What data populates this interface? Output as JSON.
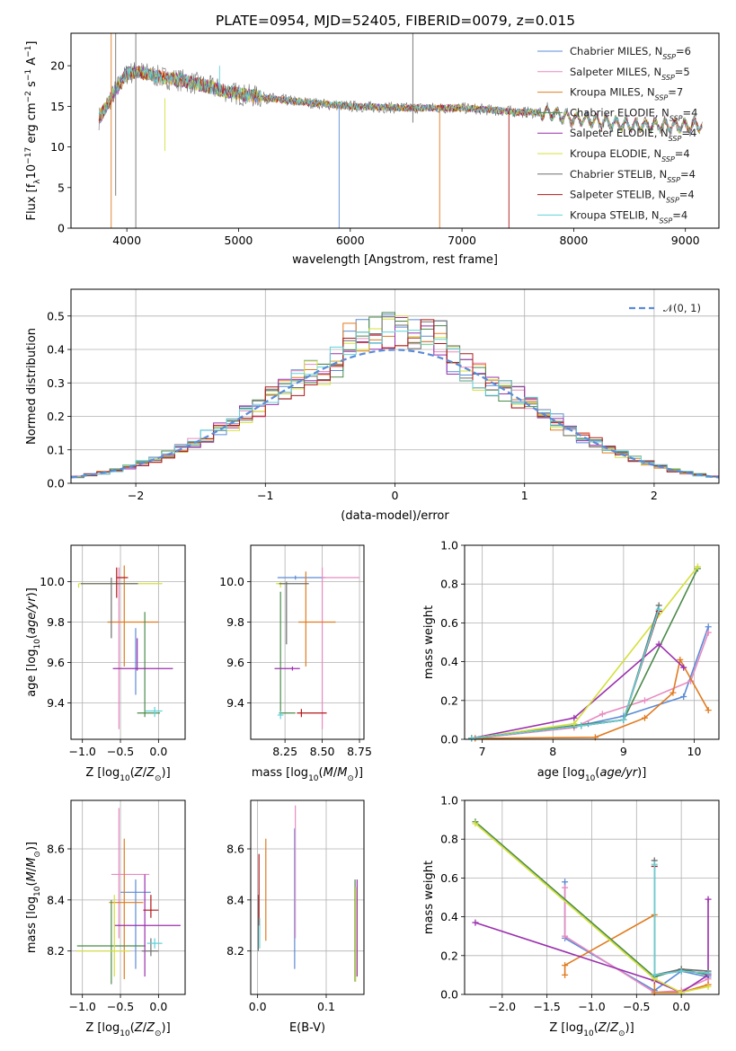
{
  "figure": {
    "title": "PLATE=0954, MJD=52405, FIBERID=0079, z=0.015"
  },
  "colors": {
    "Chabrier MILES": "#5b8bd6",
    "Salpeter MILES": "#e88bc0",
    "Kroupa MILES": "#e07b1f",
    "Chabrier ELODIE": "#4a8a4a",
    "Salpeter ELODIE": "#9b2fae",
    "Kroupa ELODIE": "#d4e03a",
    "Chabrier STELIB": "#6e6e6e",
    "Salpeter STELIB": "#b01818",
    "Kroupa STELIB": "#5fd2d8",
    "normal_curve": "#5b8bd6"
  },
  "legend_spectrum": [
    {
      "name": "Chabrier MILES",
      "label": "Chabrier MILES, N",
      "sub": "SSP",
      "tail": "=6"
    },
    {
      "name": "Salpeter MILES",
      "label": "Salpeter MILES, N",
      "sub": "SSP",
      "tail": "=5"
    },
    {
      "name": "Kroupa MILES",
      "label": "Kroupa MILES, N",
      "sub": "SSP",
      "tail": "=7"
    },
    {
      "name": "Chabrier ELODIE",
      "label": "Chabrier ELODIE, N",
      "sub": "SSP",
      "tail": "=4"
    },
    {
      "name": "Salpeter ELODIE",
      "label": "Salpeter ELODIE, N",
      "sub": "SSP",
      "tail": "=4"
    },
    {
      "name": "Kroupa ELODIE",
      "label": "Kroupa ELODIE, N",
      "sub": "SSP",
      "tail": "=4"
    },
    {
      "name": "Chabrier STELIB",
      "label": "Chabrier STELIB, N",
      "sub": "SSP",
      "tail": "=4"
    },
    {
      "name": "Salpeter STELIB",
      "label": "Salpeter STELIB, N",
      "sub": "SSP",
      "tail": "=4"
    },
    {
      "name": "Kroupa STELIB",
      "label": "Kroupa STELIB, N",
      "sub": "SSP",
      "tail": "=4"
    }
  ],
  "legend_hist": {
    "label": "𝒩(0, 1)"
  },
  "chart_data": [
    {
      "id": "spectrum",
      "type": "line",
      "xlabel": "wavelength [Angstrom, rest frame]",
      "ylabel": "Flux [f",
      "xlim": [
        3500,
        9300
      ],
      "ylim": [
        0,
        24
      ],
      "xticks": [
        4000,
        5000,
        6000,
        7000,
        8000,
        9000
      ],
      "yticks": [
        0,
        5,
        10,
        15,
        20
      ],
      "continuum": {
        "x": [
          3750,
          3900,
          4000,
          4100,
          4300,
          4500,
          4800,
          5000,
          5500,
          6000,
          6500,
          7000,
          7500,
          7800,
          8000,
          8500,
          9000,
          9150
        ],
        "y": [
          13.5,
          17.0,
          19.0,
          19.3,
          18.6,
          18.2,
          17.2,
          16.5,
          15.6,
          15.0,
          14.8,
          14.8,
          14.3,
          14.2,
          13.5,
          12.7,
          12.6,
          12.7
        ]
      }
    },
    {
      "id": "residuals",
      "type": "histogram",
      "xlabel": "(data-model)/error",
      "ylabel": "Normed distribution",
      "xlim": [
        -2.5,
        2.5
      ],
      "ylim": [
        0,
        0.58
      ],
      "xticks": [
        -2,
        -1,
        0,
        1,
        2
      ],
      "yticks": [
        0.0,
        0.1,
        0.2,
        0.3,
        0.4,
        0.5
      ],
      "bin_width": 0.1,
      "normal": {
        "mu": 0,
        "sigma": 1
      }
    },
    {
      "id": "age-vs-Z",
      "type": "errorbar",
      "xlabel": "Z [log",
      "ylabel": "age  [log",
      "xlim": [
        -1.15,
        0.35
      ],
      "ylim": [
        9.22,
        10.18
      ],
      "xticks": [
        -1.0,
        -0.5,
        0.0
      ],
      "yticks": [
        9.4,
        9.6,
        9.8,
        10.0
      ],
      "points": [
        {
          "s": "Chabrier MILES",
          "x": -0.3,
          "y": 9.57,
          "xe": [
            0,
            0
          ],
          "ye": [
            0.13,
            0.2
          ]
        },
        {
          "s": "Salpeter MILES",
          "x": -0.52,
          "y": 10.02,
          "xe": [
            0,
            0.1
          ],
          "ye": [
            0.75,
            0.05
          ]
        },
        {
          "s": "Kroupa MILES",
          "x": -0.45,
          "y": 9.8,
          "xe": [
            0.22,
            0.45
          ],
          "ye": [
            0.22,
            0.28
          ]
        },
        {
          "s": "Chabrier ELODIE",
          "x": -0.18,
          "y": 9.35,
          "xe": [
            0.1,
            0.2
          ],
          "ye": [
            0.02,
            0.5
          ]
        },
        {
          "s": "Salpeter ELODIE",
          "x": -0.28,
          "y": 9.57,
          "xe": [
            0.32,
            0.47
          ],
          "ye": [
            0.01,
            0.15
          ]
        },
        {
          "s": "Kroupa ELODIE",
          "x": -1.05,
          "y": 9.99,
          "xe": [
            0,
            1.1
          ],
          "ye": [
            0.02,
            0
          ]
        },
        {
          "s": "Chabrier STELIB",
          "x": -0.62,
          "y": 9.99,
          "xe": [
            0.4,
            0.35
          ],
          "ye": [
            0.27,
            0.03
          ]
        },
        {
          "s": "Salpeter STELIB",
          "x": -0.55,
          "y": 10.02,
          "xe": [
            0,
            0.15
          ],
          "ye": [
            0.1,
            0.05
          ]
        },
        {
          "s": "Kroupa STELIB",
          "x": -0.05,
          "y": 9.36,
          "xe": [
            0.12,
            0.1
          ],
          "ye": [
            0.03,
            0.02
          ]
        }
      ]
    },
    {
      "id": "age-vs-mass",
      "type": "errorbar",
      "xlabel": "mass [log",
      "ylabel": "",
      "xlim": [
        8.02,
        8.78
      ],
      "ylim": [
        9.22,
        10.18
      ],
      "xticks": [
        8.25,
        8.5,
        8.75
      ],
      "yticks": [
        9.4,
        9.6,
        9.8,
        10.0
      ],
      "points": [
        {
          "s": "Chabrier MILES",
          "x": 8.32,
          "y": 10.02,
          "xe": [
            0.12,
            0.2
          ],
          "ye": [
            0.01,
            0.01
          ]
        },
        {
          "s": "Salpeter MILES",
          "x": 8.5,
          "y": 10.02,
          "xe": [
            0,
            0.25
          ],
          "ye": [
            0.75,
            0.05
          ]
        },
        {
          "s": "Kroupa MILES",
          "x": 8.39,
          "y": 9.8,
          "xe": [
            0.05,
            0.2
          ],
          "ye": [
            0.22,
            0.25
          ]
        },
        {
          "s": "Chabrier ELODIE",
          "x": 8.22,
          "y": 9.35,
          "xe": [
            0.01,
            0.1
          ],
          "ye": [
            0.01,
            0.6
          ]
        },
        {
          "s": "Salpeter ELODIE",
          "x": 8.3,
          "y": 9.57,
          "xe": [
            0.12,
            0.05
          ],
          "ye": [
            0.01,
            0.01
          ]
        },
        {
          "s": "Kroupa ELODIE",
          "x": 8.22,
          "y": 9.99,
          "xe": [
            0.03,
            0.05
          ],
          "ye": [
            0.02,
            0.01
          ]
        },
        {
          "s": "Chabrier STELIB",
          "x": 8.26,
          "y": 9.99,
          "xe": [
            0.05,
            0.15
          ],
          "ye": [
            0.3,
            0.01
          ]
        },
        {
          "s": "Salpeter STELIB",
          "x": 8.36,
          "y": 9.35,
          "xe": [
            0.03,
            0.17
          ],
          "ye": [
            0.02,
            0.02
          ]
        },
        {
          "s": "Kroupa STELIB",
          "x": 8.22,
          "y": 9.34,
          "xe": [
            0.02,
            0.02
          ],
          "ye": [
            0.02,
            0.02
          ]
        }
      ]
    },
    {
      "id": "mass-weight-vs-age",
      "type": "line",
      "xlabel": "age  [log",
      "ylabel": "mass weight",
      "xlim": [
        6.75,
        10.35
      ],
      "ylim": [
        0,
        1.0
      ],
      "xticks": [
        7,
        8,
        9,
        10
      ],
      "yticks": [
        0.0,
        0.2,
        0.4,
        0.6,
        0.8,
        1.0
      ],
      "series": [
        {
          "s": "Chabrier MILES",
          "x": [
            6.85,
            8.5,
            9.0,
            9.85,
            10.2
          ],
          "y": [
            0.005,
            0.08,
            0.12,
            0.22,
            0.58
          ]
        },
        {
          "s": "Salpeter MILES",
          "x": [
            6.9,
            8.3,
            8.7,
            9.3,
            9.95,
            10.2
          ],
          "y": [
            0.005,
            0.06,
            0.13,
            0.2,
            0.3,
            0.55
          ]
        },
        {
          "s": "Kroupa MILES",
          "x": [
            6.9,
            8.6,
            9.3,
            9.7,
            9.8,
            10.2
          ],
          "y": [
            0.005,
            0.01,
            0.11,
            0.24,
            0.41,
            0.15
          ]
        },
        {
          "s": "Chabrier ELODIE",
          "x": [
            6.85,
            8.3,
            9.0,
            10.05
          ],
          "y": [
            0.005,
            0.07,
            0.1,
            0.88
          ]
        },
        {
          "s": "Salpeter ELODIE",
          "x": [
            6.85,
            8.3,
            9.5,
            9.85
          ],
          "y": [
            0.005,
            0.11,
            0.49,
            0.37
          ]
        },
        {
          "s": "Kroupa ELODIE",
          "x": [
            6.85,
            8.3,
            10.05
          ],
          "y": [
            0.005,
            0.08,
            0.89
          ]
        },
        {
          "s": "Chabrier STELIB",
          "x": [
            6.85,
            8.4,
            9.0,
            9.5
          ],
          "y": [
            0.005,
            0.07,
            0.1,
            0.69
          ]
        },
        {
          "s": "Salpeter STELIB",
          "x": [
            6.85,
            8.4,
            9.0,
            9.5
          ],
          "y": [
            0.005,
            0.07,
            0.1,
            0.66
          ]
        },
        {
          "s": "Kroupa STELIB",
          "x": [
            6.85,
            8.4,
            9.0,
            9.5
          ],
          "y": [
            0.005,
            0.07,
            0.1,
            0.67
          ]
        }
      ]
    },
    {
      "id": "mass-vs-Z",
      "type": "errorbar",
      "xlabel": "Z [log",
      "ylabel": "mass [log",
      "xlim": [
        -1.15,
        0.35
      ],
      "ylim": [
        8.03,
        8.79
      ],
      "xticks": [
        -1.0,
        -0.5,
        0.0
      ],
      "yticks": [
        8.2,
        8.4,
        8.6
      ],
      "points": [
        {
          "s": "Chabrier MILES",
          "x": -0.3,
          "y": 8.43,
          "xe": [
            0.2,
            0.2
          ],
          "ye": [
            0.3,
            0.05
          ]
        },
        {
          "s": "Salpeter MILES",
          "x": -0.52,
          "y": 8.5,
          "xe": [
            0.1,
            0.4
          ],
          "ye": [
            0.25,
            0.26
          ]
        },
        {
          "s": "Kroupa MILES",
          "x": -0.45,
          "y": 8.39,
          "xe": [
            0.2,
            0.25
          ],
          "ye": [
            0.3,
            0.25
          ]
        },
        {
          "s": "Chabrier ELODIE",
          "x": -0.62,
          "y": 8.22,
          "xe": [
            0.45,
            0.45
          ],
          "ye": [
            0.15,
            0.18
          ]
        },
        {
          "s": "Salpeter ELODIE",
          "x": -0.18,
          "y": 8.3,
          "xe": [
            0.4,
            0.47
          ],
          "ye": [
            0.2,
            0.2
          ]
        },
        {
          "s": "Kroupa ELODIE",
          "x": -0.58,
          "y": 8.2,
          "xe": [
            0.5,
            0.2
          ],
          "ye": [
            0.1,
            0.22
          ]
        },
        {
          "s": "Chabrier STELIB",
          "x": -0.1,
          "y": 8.2,
          "xe": [
            0.12,
            0.1
          ],
          "ye": [
            0.02,
            0.05
          ]
        },
        {
          "s": "Salpeter STELIB",
          "x": -0.1,
          "y": 8.36,
          "xe": [
            0.1,
            0.1
          ],
          "ye": [
            0.03,
            0.06
          ]
        },
        {
          "s": "Kroupa STELIB",
          "x": -0.05,
          "y": 8.23,
          "xe": [
            0.1,
            0.1
          ],
          "ye": [
            0.02,
            0.02
          ]
        }
      ]
    },
    {
      "id": "mass-vs-EBV",
      "type": "errorbar",
      "xlabel": "E(B-V)",
      "ylabel": "",
      "xlim": [
        -0.01,
        0.155
      ],
      "ylim": [
        8.03,
        8.79
      ],
      "xticks": [
        0.0,
        0.1
      ],
      "yticks": [
        8.2,
        8.4,
        8.6
      ],
      "points": [
        {
          "s": "Chabrier MILES",
          "x": 0.054,
          "y": 8.43,
          "xe": [
            0,
            0
          ],
          "ye": [
            0.3,
            0.25
          ]
        },
        {
          "s": "Salpeter MILES",
          "x": 0.055,
          "y": 8.5,
          "xe": [
            0,
            0
          ],
          "ye": [
            0.25,
            0.27
          ]
        },
        {
          "s": "Kroupa MILES",
          "x": 0.012,
          "y": 8.42,
          "xe": [
            0,
            0
          ],
          "ye": [
            0.18,
            0.22
          ]
        },
        {
          "s": "Chabrier ELODIE",
          "x": 0.142,
          "y": 8.28,
          "xe": [
            0,
            0
          ],
          "ye": [
            0.2,
            0.2
          ]
        },
        {
          "s": "Salpeter ELODIE",
          "x": 0.145,
          "y": 8.3,
          "xe": [
            0,
            0
          ],
          "ye": [
            0.2,
            0.18
          ]
        },
        {
          "s": "Kroupa ELODIE",
          "x": 0.143,
          "y": 8.2,
          "xe": [
            0,
            0
          ],
          "ye": [
            0.12,
            0.25
          ]
        },
        {
          "s": "Chabrier STELIB",
          "x": 0.001,
          "y": 8.3,
          "xe": [
            0,
            0
          ],
          "ye": [
            0.1,
            0.12
          ]
        },
        {
          "s": "Salpeter STELIB",
          "x": 0.002,
          "y": 8.42,
          "xe": [
            0,
            0
          ],
          "ye": [
            0.12,
            0.16
          ]
        },
        {
          "s": "Kroupa STELIB",
          "x": 0.003,
          "y": 8.23,
          "xe": [
            0,
            0
          ],
          "ye": [
            0.02,
            0.1
          ]
        }
      ]
    },
    {
      "id": "mass-weight-vs-Z",
      "type": "line",
      "xlabel": "Z [log",
      "ylabel": "mass weight",
      "xlim": [
        -2.42,
        0.42
      ],
      "ylim": [
        0,
        1.0
      ],
      "xticks": [
        -2.0,
        -1.5,
        -1.0,
        -0.5,
        0.0
      ],
      "yticks": [
        0.0,
        0.2,
        0.4,
        0.6,
        0.8,
        1.0
      ],
      "series": [
        {
          "s": "Chabrier MILES",
          "x": [
            -1.3,
            -1.3,
            -0.3,
            0.0,
            0.3,
            0.3
          ],
          "y": [
            0.58,
            0.29,
            0.02,
            0.12,
            0.09,
            0.1
          ]
        },
        {
          "s": "Salpeter MILES",
          "x": [
            -1.3,
            -1.3,
            -0.3,
            0.0,
            0.3,
            0.3
          ],
          "y": [
            0.55,
            0.3,
            0.01,
            0.02,
            0.08,
            0.05
          ]
        },
        {
          "s": "Kroupa MILES",
          "x": [
            -1.3,
            -1.3,
            -0.3,
            -0.3,
            0.0,
            0.3
          ],
          "y": [
            0.1,
            0.15,
            0.41,
            0.01,
            0.01,
            0.05
          ]
        },
        {
          "s": "Chabrier ELODIE",
          "x": [
            -2.3,
            -0.3,
            0.0,
            0.3
          ],
          "y": [
            0.89,
            0.09,
            0.13,
            0.1
          ]
        },
        {
          "s": "Salpeter ELODIE",
          "x": [
            -2.3,
            -0.3,
            0.0,
            0.3,
            0.3
          ],
          "y": [
            0.37,
            0.07,
            0.01,
            0.1,
            0.49
          ]
        },
        {
          "s": "Kroupa ELODIE",
          "x": [
            -2.3,
            -0.3,
            0.0,
            0.3
          ],
          "y": [
            0.88,
            0.08,
            0.01,
            0.04
          ]
        },
        {
          "s": "Chabrier STELIB",
          "x": [
            -0.3,
            -0.3,
            0.0,
            0.3
          ],
          "y": [
            0.69,
            0.1,
            0.13,
            0.12
          ]
        },
        {
          "s": "Salpeter STELIB",
          "x": [
            -0.3,
            -0.3,
            0.0,
            0.3
          ],
          "y": [
            0.66,
            0.1,
            0.12,
            0.11
          ]
        },
        {
          "s": "Kroupa STELIB",
          "x": [
            -0.3,
            -0.3,
            0.0,
            0.3
          ],
          "y": [
            0.67,
            0.1,
            0.12,
            0.11
          ]
        }
      ]
    }
  ]
}
